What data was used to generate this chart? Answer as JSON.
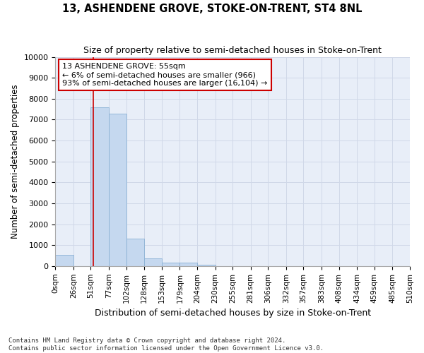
{
  "title": "13, ASHENDENE GROVE, STOKE-ON-TRENT, ST4 8NL",
  "subtitle": "Size of property relative to semi-detached houses in Stoke-on-Trent",
  "xlabel": "Distribution of semi-detached houses by size in Stoke-on-Trent",
  "ylabel": "Number of semi-detached properties",
  "bin_edges": [
    0,
    26,
    51,
    77,
    102,
    128,
    153,
    179,
    204,
    230,
    255,
    281,
    306,
    332,
    357,
    383,
    408,
    434,
    459,
    485,
    510
  ],
  "bar_heights": [
    550,
    0,
    7600,
    7300,
    1300,
    350,
    150,
    150,
    70,
    0,
    0,
    0,
    0,
    0,
    0,
    0,
    0,
    0,
    0,
    0
  ],
  "bar_color": "#c5d8ef",
  "bar_edgecolor": "#8ab0d4",
  "property_size": 55,
  "property_label": "13 ASHENDENE GROVE: 55sqm",
  "pct_smaller": 6,
  "n_smaller": 966,
  "pct_larger": 93,
  "n_larger": "16,104",
  "vline_color": "#cc0000",
  "annotation_box_edgecolor": "#cc0000",
  "ylim": [
    0,
    10000
  ],
  "yticks": [
    0,
    1000,
    2000,
    3000,
    4000,
    5000,
    6000,
    7000,
    8000,
    9000,
    10000
  ],
  "grid_color": "#d0d8e8",
  "bg_color": "#e8eef8",
  "fig_bg_color": "#ffffff",
  "footer1": "Contains HM Land Registry data © Crown copyright and database right 2024.",
  "footer2": "Contains public sector information licensed under the Open Government Licence v3.0."
}
